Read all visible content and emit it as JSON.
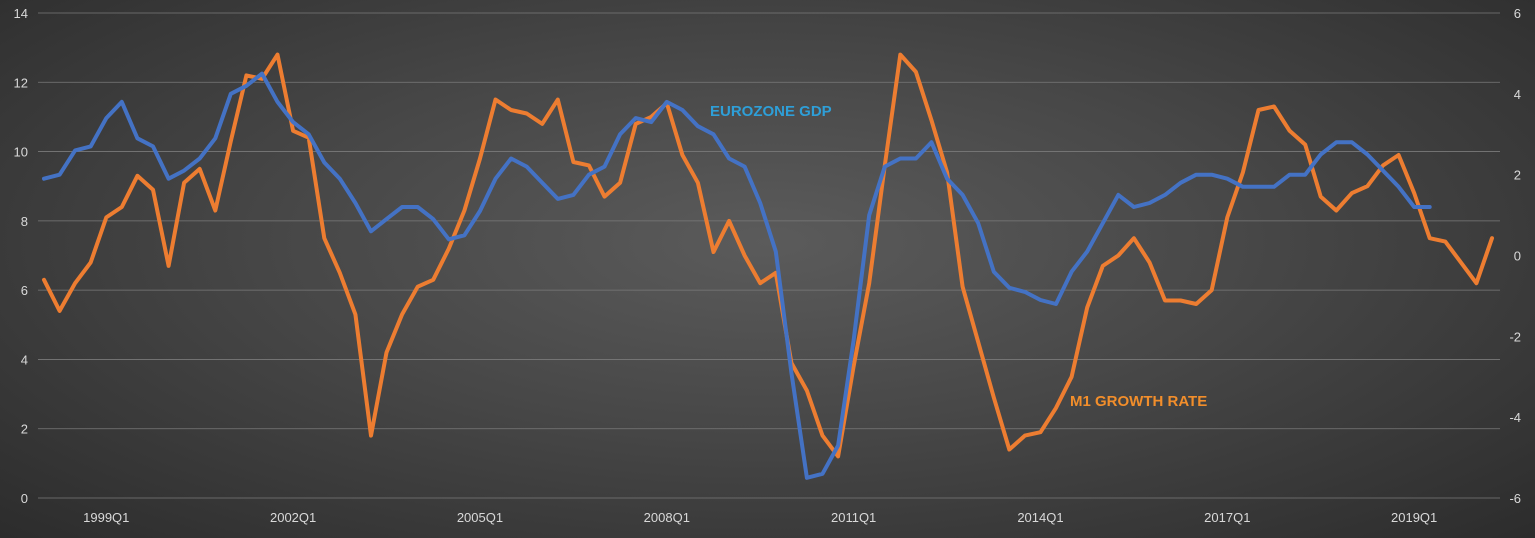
{
  "chart_data": {
    "type": "line",
    "grid": true,
    "y_left": {
      "range": [
        0,
        14
      ],
      "ticks": [
        "0",
        "2",
        "4",
        "6",
        "8",
        "10",
        "12",
        "14"
      ]
    },
    "y_right": {
      "range": [
        -6,
        6
      ],
      "ticks": [
        "-6",
        "-4",
        "-2",
        "0",
        "2",
        "4",
        "6"
      ]
    },
    "x_ticks": [
      "1999Q1",
      "2002Q1",
      "2005Q1",
      "2008Q1",
      "2011Q1",
      "2014Q1",
      "2017Q1",
      "2019Q1"
    ],
    "x_tick_positions": [
      4,
      16,
      28,
      40,
      52,
      64,
      76,
      88
    ],
    "series": [
      {
        "name": "M1 GROWTH RATE",
        "axis": "left",
        "color": "#ed7d31",
        "label_color": "#f28e2b",
        "values": [
          6.3,
          5.4,
          6.2,
          6.8,
          8.1,
          8.4,
          9.3,
          8.9,
          6.7,
          9.1,
          9.5,
          8.3,
          10.3,
          12.2,
          12.1,
          12.8,
          10.6,
          10.4,
          7.5,
          6.5,
          5.3,
          1.8,
          4.2,
          5.3,
          6.1,
          6.3,
          7.2,
          8.3,
          9.8,
          11.5,
          11.2,
          11.1,
          10.8,
          11.5,
          9.7,
          9.6,
          8.7,
          9.1,
          10.8,
          11.0,
          11.4,
          9.9,
          9.1,
          7.1,
          8.0,
          7.0,
          6.2,
          6.5,
          3.9,
          3.1,
          1.8,
          1.2,
          3.8,
          6.2,
          9.6,
          12.8,
          12.3,
          10.9,
          9.4,
          6.1,
          4.5,
          2.9,
          1.4,
          1.8,
          1.9,
          2.6,
          3.5,
          5.5,
          6.7,
          7.0,
          7.5,
          6.8,
          5.7,
          5.7,
          5.6,
          6.0,
          8.1,
          9.4,
          11.2,
          11.3,
          10.6,
          10.2,
          8.7,
          8.3,
          8.8,
          9.0,
          9.6,
          9.9,
          8.8,
          7.5,
          7.4,
          6.8,
          6.2,
          7.5
        ]
      },
      {
        "name": "EUROZONE GDP",
        "axis": "right",
        "color": "#4472c4",
        "label_color": "#2e9fd8",
        "values": [
          1.9,
          2.0,
          2.6,
          2.7,
          3.4,
          3.8,
          2.9,
          2.7,
          1.9,
          2.1,
          2.4,
          2.9,
          4.0,
          4.2,
          4.5,
          3.8,
          3.3,
          3.0,
          2.3,
          1.9,
          1.3,
          0.6,
          0.9,
          1.2,
          1.2,
          0.9,
          0.4,
          0.5,
          1.1,
          1.9,
          2.4,
          2.2,
          1.8,
          1.4,
          1.5,
          2.0,
          2.2,
          3.0,
          3.4,
          3.3,
          3.8,
          3.6,
          3.2,
          3.0,
          2.4,
          2.2,
          1.3,
          0.1,
          -2.9,
          -5.5,
          -5.4,
          -4.7,
          -2.1,
          1.0,
          2.2,
          2.4,
          2.4,
          2.8,
          1.9,
          1.5,
          0.8,
          -0.4,
          -0.8,
          -0.9,
          -1.1,
          -1.2,
          -0.4,
          0.1,
          0.8,
          1.5,
          1.2,
          1.3,
          1.5,
          1.8,
          2.0,
          2.0,
          1.9,
          1.7,
          1.7,
          1.7,
          2.0,
          2.0,
          2.5,
          2.8,
          2.8,
          2.5,
          2.1,
          1.7,
          1.2,
          1.2
        ]
      }
    ],
    "series_label_positions": [
      "lower-right",
      "upper-middle"
    ]
  }
}
